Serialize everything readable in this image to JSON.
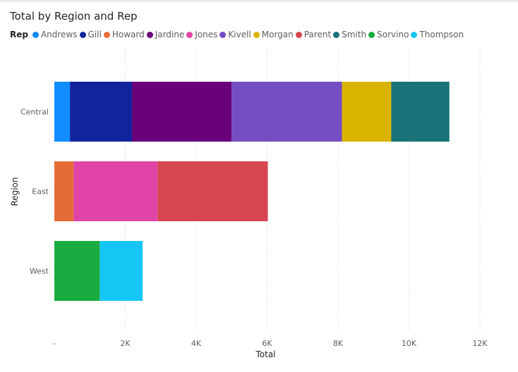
{
  "chart_data": {
    "type": "bar",
    "orientation": "horizontal",
    "stacked": true,
    "title": "Total by Region and Rep",
    "legend_title": "Rep",
    "legend_position": "top-left",
    "xlabel": "Total",
    "ylabel": "Region",
    "xlim": [
      0,
      12000
    ],
    "x_ticks": [
      {
        "value": 0,
        "label": "-"
      },
      {
        "value": 2000,
        "label": "2K"
      },
      {
        "value": 4000,
        "label": "4K"
      },
      {
        "value": 6000,
        "label": "6K"
      },
      {
        "value": 8000,
        "label": "8K"
      },
      {
        "value": 10000,
        "label": "10K"
      },
      {
        "value": 12000,
        "label": "12K"
      }
    ],
    "grid": "vertical-dotted",
    "categories": [
      "Central",
      "East",
      "West"
    ],
    "series": [
      {
        "name": "Andrews",
        "color": "#118DFF",
        "values": [
          440,
          0,
          0
        ]
      },
      {
        "name": "Gill",
        "color": "#12239E",
        "values": [
          1750,
          0,
          0
        ]
      },
      {
        "name": "Howard",
        "color": "#E66C37",
        "values": [
          0,
          540,
          0
        ]
      },
      {
        "name": "Jardine",
        "color": "#6B007B",
        "values": [
          2810,
          0,
          0
        ]
      },
      {
        "name": "Jones",
        "color": "#E044A7",
        "values": [
          0,
          2370,
          0
        ]
      },
      {
        "name": "Kivell",
        "color": "#744EC2",
        "values": [
          3110,
          0,
          0
        ]
      },
      {
        "name": "Morgan",
        "color": "#D9B300",
        "values": [
          1390,
          0,
          0
        ]
      },
      {
        "name": "Parent",
        "color": "#D64550",
        "values": [
          0,
          3110,
          0
        ]
      },
      {
        "name": "Smith",
        "color": "#197278",
        "values": [
          1640,
          0,
          0
        ]
      },
      {
        "name": "Sorvino",
        "color": "#1AAB40",
        "values": [
          0,
          0,
          1280
        ]
      },
      {
        "name": "Thompson",
        "color": "#15C6F4",
        "values": [
          0,
          0,
          1210
        ]
      }
    ]
  }
}
